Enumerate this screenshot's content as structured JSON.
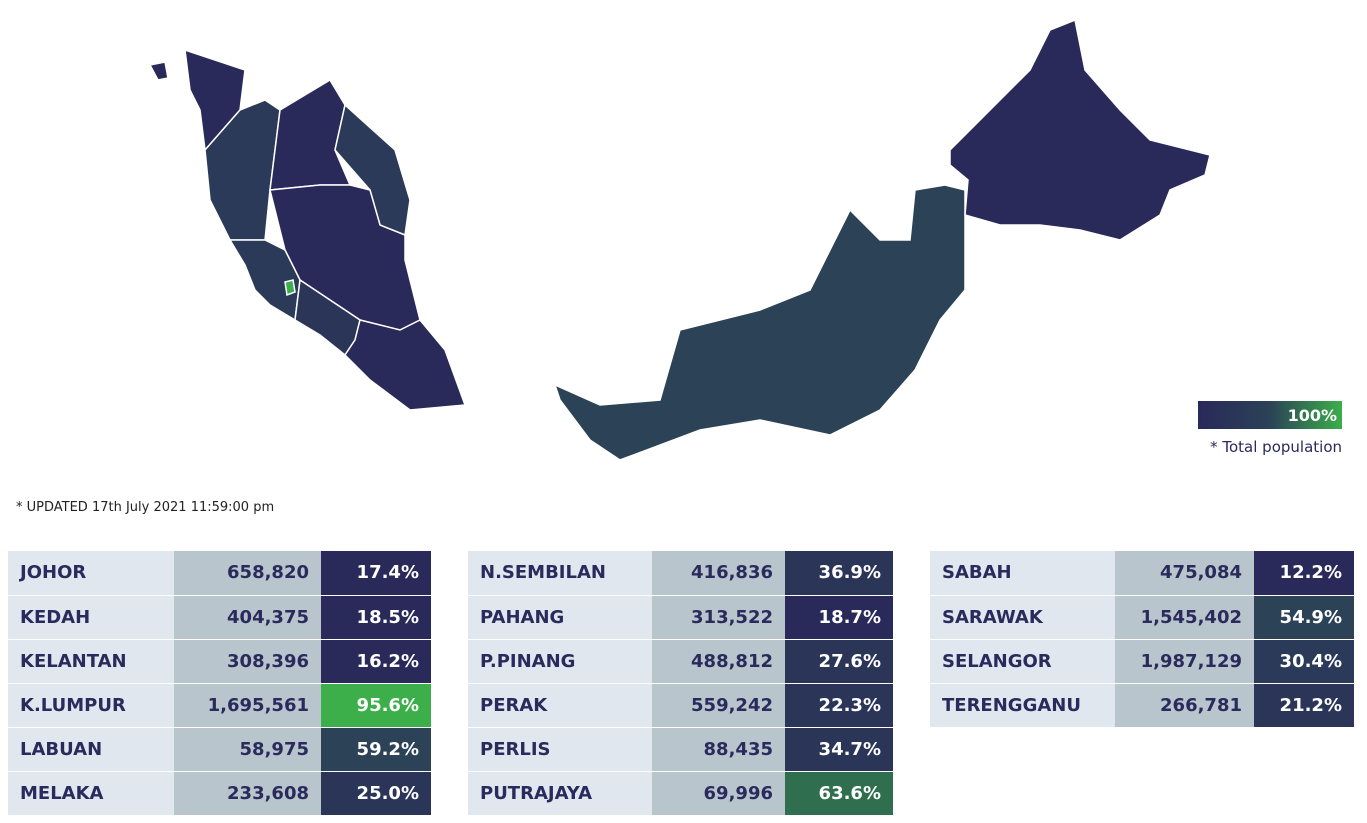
{
  "updated": "* UPDATED 17th July 2021 11:59:00 pm",
  "legend": {
    "max_label": "100%",
    "note": "* Total population"
  },
  "tables": [
    {
      "rows": [
        {
          "state": "JOHOR",
          "count": "658,820",
          "percent": "17.4%",
          "color": "#29295a"
        },
        {
          "state": "KEDAH",
          "count": "404,375",
          "percent": "18.5%",
          "color": "#29295a"
        },
        {
          "state": "KELANTAN",
          "count": "308,396",
          "percent": "16.2%",
          "color": "#29295a"
        },
        {
          "state": "K.LUMPUR",
          "count": "1,695,561",
          "percent": "95.6%",
          "color": "#3cae4a"
        },
        {
          "state": "LABUAN",
          "count": "58,975",
          "percent": "59.2%",
          "color": "#2b4257"
        },
        {
          "state": "MELAKA",
          "count": "233,608",
          "percent": "25.0%",
          "color": "#2b3558"
        }
      ]
    },
    {
      "rows": [
        {
          "state": "N.SEMBILAN",
          "count": "416,836",
          "percent": "36.9%",
          "color": "#2b3558"
        },
        {
          "state": "PAHANG",
          "count": "313,522",
          "percent": "18.7%",
          "color": "#29295a"
        },
        {
          "state": "P.PINANG",
          "count": "488,812",
          "percent": "27.6%",
          "color": "#2b3558"
        },
        {
          "state": "PERAK",
          "count": "559,242",
          "percent": "22.3%",
          "color": "#2b3558"
        },
        {
          "state": "PERLIS",
          "count": "88,435",
          "percent": "34.7%",
          "color": "#2b3558"
        },
        {
          "state": "PUTRAJAYA",
          "count": "69,996",
          "percent": "63.6%",
          "color": "#2f6e4f"
        }
      ]
    },
    {
      "rows": [
        {
          "state": "SABAH",
          "count": "475,084",
          "percent": "12.2%",
          "color": "#29295a"
        },
        {
          "state": "SARAWAK",
          "count": "1,545,402",
          "percent": "54.9%",
          "color": "#2b4257"
        },
        {
          "state": "SELANGOR",
          "count": "1,987,129",
          "percent": "30.4%",
          "color": "#2b3a58"
        },
        {
          "state": "TERENGGANU",
          "count": "266,781",
          "percent": "21.2%",
          "color": "#2b3558"
        }
      ]
    }
  ]
}
